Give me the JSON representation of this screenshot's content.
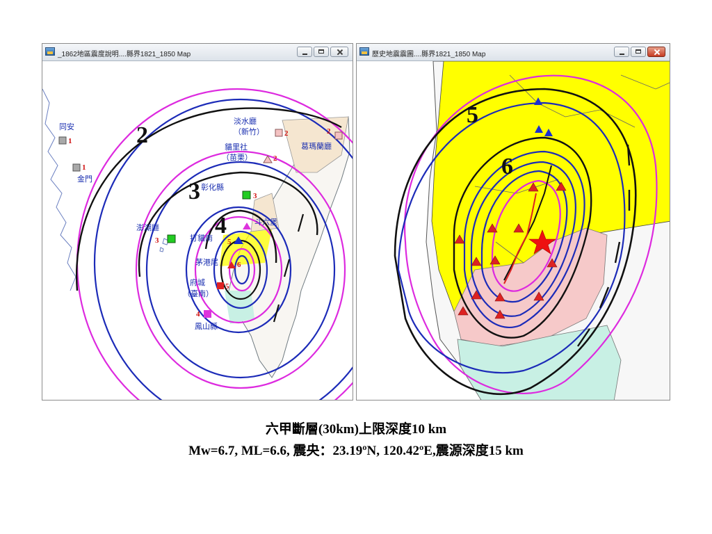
{
  "left_window": {
    "title": "_1862地區震度說明....縣界1821_1850 Map",
    "isoseismal_labels": [
      "2",
      "3",
      "4"
    ],
    "places": [
      {
        "name": "同安",
        "intensity": "1",
        "marker_color": "#a9a9a9"
      },
      {
        "name": "金門",
        "intensity": "1",
        "marker_color": "#a9a9a9"
      },
      {
        "name": "淡水廳",
        "name2": "（新竹）",
        "intensity": "2",
        "marker_color": "#f4c2c2"
      },
      {
        "name": "葛瑪蘭廳",
        "intensity": "2",
        "marker_color": "#f4c2c2"
      },
      {
        "name": "貓里社",
        "name2": "（苗栗）",
        "intensity": "2",
        "marker_color": "#f4c2c2"
      },
      {
        "name": "彰化縣",
        "intensity": "3",
        "marker_color": "#22cc22"
      },
      {
        "name": "澎湖廳",
        "intensity": "3",
        "marker_color": "#22cc22"
      },
      {
        "name": "斗六堡",
        "intensity": "",
        "marker_color": "#dd33dd"
      },
      {
        "name": "打貓南",
        "intensity": "5",
        "marker_color": "#2233cc"
      },
      {
        "name": "茅港尾",
        "intensity": "6",
        "marker_color": "#dd2222"
      },
      {
        "name": "府城",
        "name2": "（臺南）",
        "intensity": "5",
        "marker_color": "#dd2222"
      },
      {
        "name": "鳳山縣",
        "intensity": "4",
        "marker_color": "#dd33dd"
      }
    ]
  },
  "right_window": {
    "title": "歷史地震震圖....縣界1821_1850 Map",
    "isoseismal_labels": [
      "5",
      "6"
    ]
  },
  "colors": {
    "contour_black": "#111111",
    "contour_blue": "#1c2bb8",
    "contour_magenta": "#dd2adf",
    "zone_yellow": "#ffff00",
    "zone_pink": "#f6c9c9",
    "zone_mint": "#c8f0e4",
    "zone_beige": "#f5e6d0",
    "triangle_red": "#dd2222",
    "triangle_blue": "#1a2fd0",
    "epicenter": "#ee1111"
  },
  "caption": {
    "line1": "六甲斷層(30km)上限深度10 km",
    "line2": "Mw=6.7, ML=6.6,  震央：23.19ºN, 120.42ºE,震源深度15 km"
  }
}
